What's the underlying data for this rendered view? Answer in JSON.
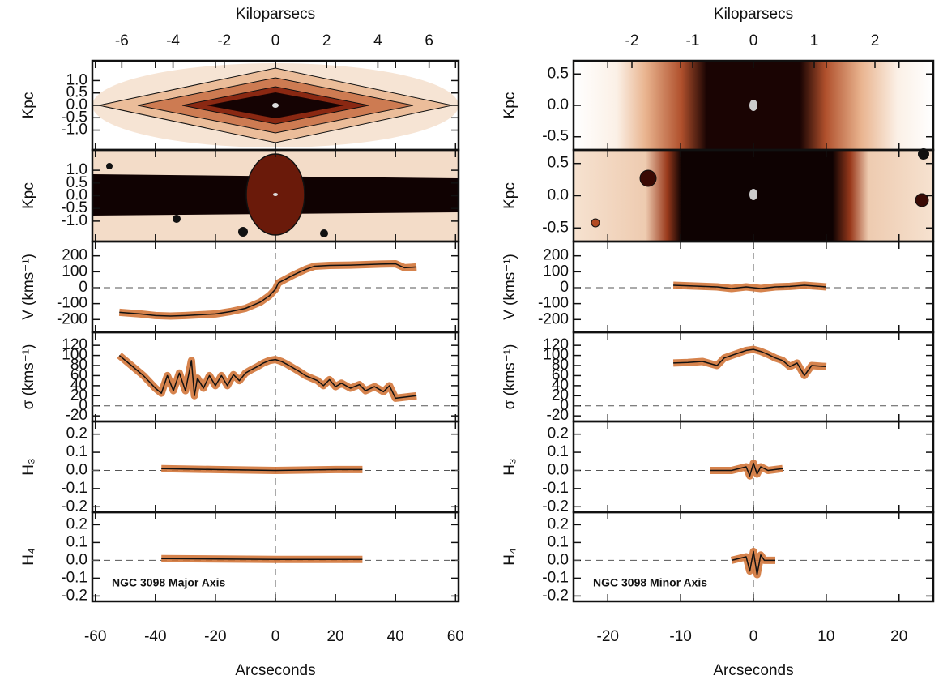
{
  "chart_data": [
    {
      "type": "line",
      "annotation": "NGC 3098 Major Axis",
      "xlabel": "Arcseconds",
      "xlim": [
        -61,
        61
      ],
      "xticks": [
        -60,
        -40,
        -20,
        0,
        20,
        40,
        60
      ],
      "x2label": "Kiloparsecs",
      "x2lim": [
        -7.15,
        7.15
      ],
      "x2ticks": [
        -6,
        -4,
        -2,
        0,
        2,
        4,
        6
      ],
      "image_panels": [
        {
          "ylabel": "Kpc",
          "ylim": [
            -1.8,
            1.8
          ],
          "yticks": [
            {
              "value": 1.0,
              "label": "1.0"
            },
            0.5,
            {
              "value": 0.0,
              "label": "0.0"
            },
            -0.5,
            {
              "value": -1.0,
              "label": "-1.0"
            }
          ]
        },
        {
          "ylabel": "Kpc",
          "ylim": [
            -1.8,
            1.8
          ],
          "yticks": [
            {
              "value": 1.0,
              "label": "1.0"
            },
            0.5,
            {
              "value": 0.0,
              "label": "0.0"
            },
            -0.5,
            {
              "value": -1.0,
              "label": "-1.0"
            }
          ]
        }
      ],
      "panels": [
        {
          "ylabel": "V (kms⁻¹)",
          "ylim": [
            -280,
            290
          ],
          "yticks": [
            -200,
            -100,
            0,
            100,
            200
          ],
          "x": [
            -52,
            -45,
            -40,
            -35,
            -30,
            -25,
            -20,
            -15,
            -10,
            -5,
            -2,
            0,
            1,
            3,
            6,
            10,
            13,
            18,
            25,
            30,
            35,
            40,
            43,
            47
          ],
          "values": [
            -155,
            -165,
            -175,
            -178,
            -175,
            -170,
            -165,
            -150,
            -130,
            -90,
            -50,
            -10,
            30,
            50,
            80,
            115,
            135,
            140,
            142,
            145,
            148,
            150,
            125,
            130
          ]
        },
        {
          "ylabel": "σ (kms⁻¹)",
          "ylim": [
            -31,
            146
          ],
          "yticks": [
            -20,
            0,
            20,
            40,
            60,
            80,
            100,
            120
          ],
          "x": [
            -52,
            -48,
            -44,
            -40,
            -38,
            -36,
            -34,
            -32,
            -30,
            -28,
            -27,
            -26,
            -24,
            -22,
            -20,
            -18,
            -16,
            -14,
            -12,
            -10,
            -8,
            -6,
            -4,
            -2,
            0,
            2,
            4,
            6,
            8,
            10,
            12,
            14,
            16,
            18,
            20,
            22,
            25,
            28,
            30,
            33,
            36,
            38,
            40,
            47
          ],
          "values": [
            100,
            80,
            60,
            35,
            25,
            60,
            30,
            65,
            30,
            90,
            20,
            55,
            35,
            60,
            40,
            60,
            40,
            62,
            50,
            65,
            72,
            78,
            85,
            90,
            92,
            88,
            82,
            75,
            68,
            60,
            55,
            50,
            40,
            52,
            38,
            45,
            35,
            42,
            30,
            38,
            28,
            40,
            15,
            20
          ]
        },
        {
          "ylabel": "H₃",
          "ylim": [
            -0.23,
            0.27
          ],
          "yticks": [
            0.2,
            0.1,
            {
              "value": 0.0,
              "label": "0.0"
            },
            -0.1,
            -0.2
          ],
          "x": [
            -38,
            -20,
            0,
            20,
            29
          ],
          "values": [
            0.01,
            0.005,
            0,
            0.005,
            0.005
          ]
        },
        {
          "ylabel": "H₄",
          "ylim": [
            -0.23,
            0.27
          ],
          "yticks": [
            0.2,
            0.1,
            {
              "value": 0.0,
              "label": "0.0"
            },
            -0.1,
            -0.2
          ],
          "x": [
            -38,
            0,
            29
          ],
          "values": [
            0.01,
            0.005,
            0.005
          ]
        }
      ]
    },
    {
      "type": "line",
      "annotation": "NGC 3098 Minor Axis",
      "xlabel": "Arcseconds",
      "xlim": [
        -24.7,
        24.7
      ],
      "xticks": [
        -20,
        -10,
        0,
        10,
        20
      ],
      "x2label": "Kiloparsecs",
      "x2lim": [
        -2.96,
        2.96
      ],
      "x2ticks": [
        -2,
        -1,
        0,
        1,
        2
      ],
      "image_panels": [
        {
          "ylabel": "Kpc",
          "ylim": [
            -0.71,
            0.71
          ],
          "yticks": [
            0.5,
            {
              "value": 0.0,
              "label": "0.0"
            },
            -0.5
          ]
        },
        {
          "ylabel": "Kpc",
          "ylim": [
            -0.71,
            0.71
          ],
          "yticks": [
            0.5,
            {
              "value": 0.0,
              "label": "0.0"
            },
            -0.5
          ]
        }
      ],
      "panels": [
        {
          "ylabel": "V (kms⁻¹)",
          "ylim": [
            -280,
            290
          ],
          "yticks": [
            -200,
            -100,
            0,
            100,
            200
          ],
          "x": [
            -11,
            -8,
            -5,
            -3,
            -1,
            0,
            1,
            3,
            5,
            7,
            10
          ],
          "values": [
            15,
            10,
            5,
            -5,
            5,
            0,
            -5,
            5,
            8,
            15,
            5
          ]
        },
        {
          "ylabel": "σ (kms⁻¹)",
          "ylim": [
            -31,
            146
          ],
          "yticks": [
            -20,
            0,
            20,
            40,
            60,
            80,
            100,
            120
          ],
          "x": [
            -11,
            -9,
            -7,
            -5,
            -4,
            -3,
            -2,
            -1,
            0,
            1,
            2,
            3,
            4,
            5,
            6,
            7,
            8,
            10
          ],
          "values": [
            85,
            86,
            88,
            80,
            95,
            100,
            105,
            110,
            112,
            108,
            102,
            95,
            90,
            78,
            85,
            60,
            80,
            78
          ]
        },
        {
          "ylabel": "H₃",
          "ylim": [
            -0.23,
            0.27
          ],
          "yticks": [
            0.2,
            0.1,
            {
              "value": 0.0,
              "label": "0.0"
            },
            -0.1,
            -0.2
          ],
          "x": [
            -6,
            -3,
            -1,
            -0.5,
            0,
            0.5,
            1,
            2,
            4
          ],
          "values": [
            0.0,
            0.0,
            0.02,
            -0.03,
            0.04,
            -0.02,
            0.02,
            0.0,
            0.01
          ]
        },
        {
          "ylabel": "H₄",
          "ylim": [
            -0.23,
            0.27
          ],
          "yticks": [
            0.2,
            0.1,
            {
              "value": 0.0,
              "label": "0.0"
            },
            -0.1,
            -0.2
          ],
          "x": [
            -3,
            -1,
            -0.5,
            0,
            0.5,
            1,
            1.5,
            3
          ],
          "values": [
            0,
            0.02,
            -0.06,
            0.05,
            -0.08,
            0.03,
            0,
            0
          ]
        }
      ]
    }
  ]
}
